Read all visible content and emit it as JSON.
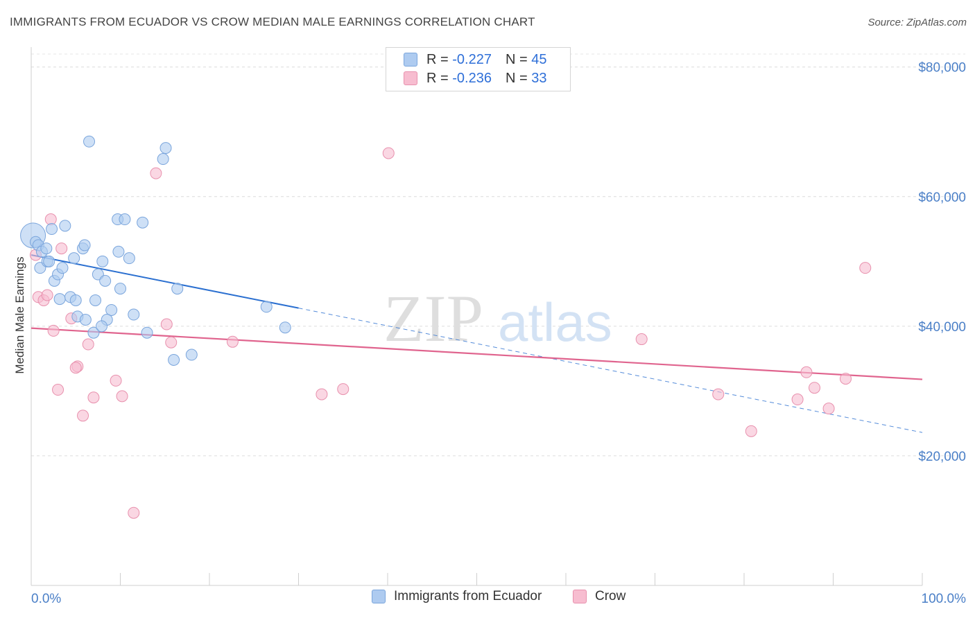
{
  "title": "IMMIGRANTS FROM ECUADOR VS CROW MEDIAN MALE EARNINGS CORRELATION CHART",
  "source": "Source: ZipAtlas.com",
  "watermark": {
    "zip": "ZIP",
    "atlas": "atlas"
  },
  "legend": {
    "r_label": "R =",
    "n_label": "N =",
    "rows": [
      {
        "r": "-0.227",
        "n": "45"
      },
      {
        "r": "-0.236",
        "n": "33"
      }
    ]
  },
  "colors": {
    "blue_fill": "#aecbf0",
    "blue_stroke": "#7aa5dc",
    "blue_line": "#2a6fd0",
    "pink_fill": "#f7bdd0",
    "pink_stroke": "#e890ad",
    "pink_line": "#e0648e",
    "tick_text": "#4a7fc7"
  },
  "chart_data": {
    "type": "scatter",
    "title": "IMMIGRANTS FROM ECUADOR VS CROW MEDIAN MALE EARNINGS CORRELATION CHART",
    "xlabel": "",
    "ylabel": "Median Male Earnings",
    "x_tick_labels": [
      "0.0%",
      "100.0%"
    ],
    "y_ticks": [
      20000,
      40000,
      60000,
      80000
    ],
    "y_tick_labels": [
      "$20,000",
      "$40,000",
      "$60,000",
      "$80,000"
    ],
    "xlim": [
      0,
      100
    ],
    "ylim": [
      0,
      82000
    ],
    "grid": "horizontal dashed",
    "legend_position": "top-center and bottom",
    "series": [
      {
        "name": "Immigrants from Ecuador",
        "color": "#aecbf0",
        "points": [
          [
            0.2,
            54000
          ],
          [
            0.5,
            53000
          ],
          [
            0.8,
            52500
          ],
          [
            1.2,
            51500
          ],
          [
            1.7,
            52000
          ],
          [
            2.3,
            55000
          ],
          [
            3.8,
            55500
          ],
          [
            1.0,
            49000
          ],
          [
            1.8,
            50000
          ],
          [
            2.6,
            47000
          ],
          [
            3.0,
            48000
          ],
          [
            3.5,
            49000
          ],
          [
            4.8,
            50500
          ],
          [
            5.8,
            52000
          ],
          [
            6.0,
            52500
          ],
          [
            7.5,
            48000
          ],
          [
            8.0,
            50000
          ],
          [
            8.3,
            47000
          ],
          [
            9.7,
            56500
          ],
          [
            10.5,
            56500
          ],
          [
            9.8,
            51500
          ],
          [
            11.0,
            50500
          ],
          [
            12.5,
            56000
          ],
          [
            6.5,
            68500
          ],
          [
            15.1,
            67500
          ],
          [
            14.8,
            65800
          ],
          [
            3.2,
            44200
          ],
          [
            4.4,
            44500
          ],
          [
            5.0,
            44000
          ],
          [
            7.2,
            44000
          ],
          [
            10.0,
            45800
          ],
          [
            9.0,
            42500
          ],
          [
            11.5,
            41800
          ],
          [
            5.2,
            41500
          ],
          [
            6.1,
            41000
          ],
          [
            8.5,
            41000
          ],
          [
            7.0,
            39000
          ],
          [
            7.9,
            40000
          ],
          [
            13.0,
            39000
          ],
          [
            16.4,
            45800
          ],
          [
            16.0,
            34800
          ],
          [
            18.0,
            35600
          ],
          [
            26.4,
            43000
          ],
          [
            28.5,
            39800
          ],
          [
            2.0,
            50000
          ]
        ],
        "trend": {
          "x": [
            0,
            30
          ],
          "y": [
            51000,
            42800
          ],
          "dashed_to": [
            100,
            23600
          ]
        }
      },
      {
        "name": "Crow",
        "color": "#f7bdd0",
        "points": [
          [
            0.5,
            51000
          ],
          [
            2.2,
            56500
          ],
          [
            3.4,
            52000
          ],
          [
            0.8,
            44500
          ],
          [
            1.4,
            44000
          ],
          [
            1.8,
            44800
          ],
          [
            2.5,
            39300
          ],
          [
            4.5,
            41200
          ],
          [
            6.4,
            37200
          ],
          [
            5.2,
            33800
          ],
          [
            5.0,
            33600
          ],
          [
            3.0,
            30200
          ],
          [
            7.0,
            29000
          ],
          [
            9.5,
            31600
          ],
          [
            10.2,
            29200
          ],
          [
            5.8,
            26200
          ],
          [
            11.5,
            11200
          ],
          [
            14.0,
            63600
          ],
          [
            15.2,
            40300
          ],
          [
            15.7,
            37500
          ],
          [
            22.6,
            37600
          ],
          [
            32.6,
            29500
          ],
          [
            35.0,
            30300
          ],
          [
            40.1,
            66700
          ],
          [
            68.5,
            38000
          ],
          [
            77.1,
            29500
          ],
          [
            80.8,
            23800
          ],
          [
            86.0,
            28700
          ],
          [
            87.0,
            32900
          ],
          [
            87.9,
            30500
          ],
          [
            89.5,
            27300
          ],
          [
            91.4,
            31900
          ],
          [
            93.6,
            49000
          ]
        ],
        "trend": {
          "x": [
            0,
            100
          ],
          "y": [
            39700,
            31800
          ]
        }
      }
    ]
  }
}
